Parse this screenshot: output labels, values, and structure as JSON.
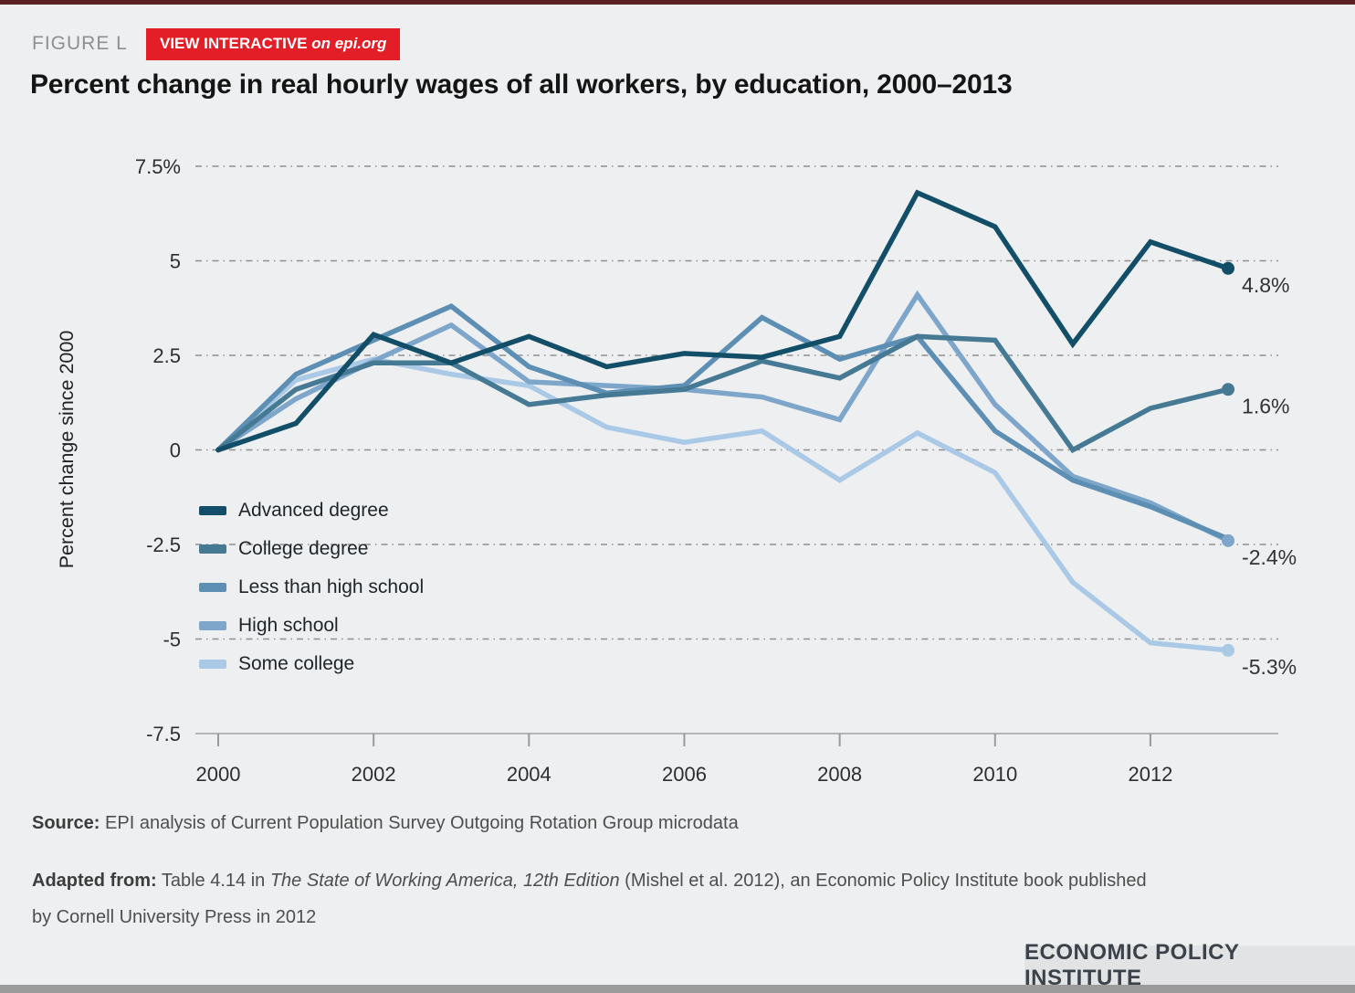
{
  "figure_label": "FIGURE L",
  "badge": {
    "text_main": "VIEW INTERACTIVE ",
    "text_italic": "on epi.org",
    "bg": "#e41e26"
  },
  "title": "Percent change in real hourly wages of all workers, by education, 2000–2013",
  "chart_data": {
    "type": "line",
    "x": [
      2000,
      2001,
      2002,
      2003,
      2004,
      2005,
      2006,
      2007,
      2008,
      2009,
      2010,
      2011,
      2012,
      2013
    ],
    "series": [
      {
        "name": "Advanced degree",
        "color": "#134e68",
        "end_label": "4.8%",
        "values": [
          0,
          0.7,
          3.05,
          2.3,
          3.0,
          2.2,
          2.55,
          2.45,
          3.0,
          6.8,
          5.9,
          2.8,
          5.5,
          4.8
        ]
      },
      {
        "name": "College degree",
        "color": "#467a94",
        "end_label": "1.6%",
        "values": [
          0,
          1.6,
          2.3,
          2.3,
          1.2,
          1.45,
          1.6,
          2.35,
          1.9,
          3.0,
          2.9,
          0.0,
          1.1,
          1.6
        ]
      },
      {
        "name": "Less than high school",
        "color": "#5d8eb3",
        "end_label": null,
        "values": [
          0,
          2.0,
          2.9,
          3.8,
          2.2,
          1.5,
          1.7,
          3.5,
          2.4,
          3.0,
          0.5,
          -0.8,
          -1.5,
          -2.35
        ]
      },
      {
        "name": "High school",
        "color": "#7da6ca",
        "end_label": "-2.4%",
        "values": [
          0,
          1.35,
          2.35,
          3.3,
          1.8,
          1.7,
          1.6,
          1.4,
          0.8,
          4.1,
          1.2,
          -0.7,
          -1.4,
          -2.4
        ]
      },
      {
        "name": "Some college",
        "color": "#a9c9e6",
        "end_label": "-5.3%",
        "values": [
          0,
          1.85,
          2.4,
          2.0,
          1.7,
          0.6,
          0.2,
          0.5,
          -0.8,
          0.45,
          -0.6,
          -3.5,
          -5.1,
          -5.3
        ]
      }
    ],
    "ylabel": "Percent change since 2000",
    "ylim": [
      -7.5,
      7.5
    ],
    "ytick_values": [
      7.5,
      5,
      2.5,
      0,
      -2.5,
      -5,
      -7.5
    ],
    "ytick_labels": [
      "7.5%",
      "5",
      "2.5",
      "0",
      "-2.5",
      "-5",
      "-7.5"
    ],
    "xtick_values": [
      2000,
      2002,
      2004,
      2006,
      2008,
      2010,
      2012
    ],
    "xtick_labels": [
      "2000",
      "2002",
      "2004",
      "2006",
      "2008",
      "2010",
      "2012"
    ],
    "grid": "horizontal dashed",
    "legend_position": "inside-left"
  },
  "source": {
    "label": "Source:",
    "text": " EPI analysis of Current Population Survey Outgoing Rotation Group microdata"
  },
  "adapted": {
    "label": "Adapted from:",
    "pre": " Table 4.14 in ",
    "italic": "The State of Working America, 12th Edition",
    "post_line1": " (Mishel et al. 2012), an Economic Policy Institute book published",
    "post_line2": "by Cornell University Press in 2012"
  },
  "footer_logo": "ECONOMIC POLICY INSTITUTE"
}
